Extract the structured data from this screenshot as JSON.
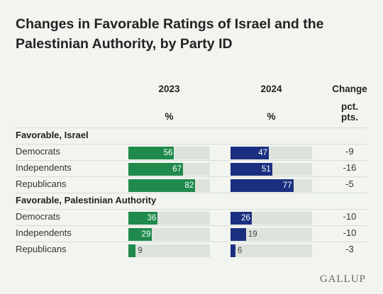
{
  "title": "Changes in Favorable Ratings of Israel and the Palestinian Authority, by Party ID",
  "headers": {
    "col2023": "2023",
    "col2024": "2024",
    "change": "Change",
    "unit": "%",
    "change_unit": "pct. pts."
  },
  "logo": "GALLUP",
  "colors": {
    "bar_2023": "#1f8a4c",
    "bar_2024": "#1b2f80",
    "track": "#dde3db"
  },
  "chart_data": {
    "type": "bar",
    "xlim": [
      0,
      100
    ],
    "series_names": [
      "2023",
      "2024"
    ],
    "groups": [
      {
        "label": "Favorable, Israel",
        "rows": [
          {
            "label": "Democrats",
            "v2023": 56,
            "v2024": 47,
            "change": "-9"
          },
          {
            "label": "Independents",
            "v2023": 67,
            "v2024": 51,
            "change": "-16"
          },
          {
            "label": "Republicans",
            "v2023": 82,
            "v2024": 77,
            "change": "-5"
          }
        ]
      },
      {
        "label": "Favorable, Palestinian Authority",
        "rows": [
          {
            "label": "Democrats",
            "v2023": 36,
            "v2024": 26,
            "change": "-10"
          },
          {
            "label": "Independents",
            "v2023": 29,
            "v2024": 19,
            "change": "-10"
          },
          {
            "label": "Republicans",
            "v2023": 9,
            "v2024": 6,
            "change": "-3"
          }
        ]
      }
    ]
  }
}
